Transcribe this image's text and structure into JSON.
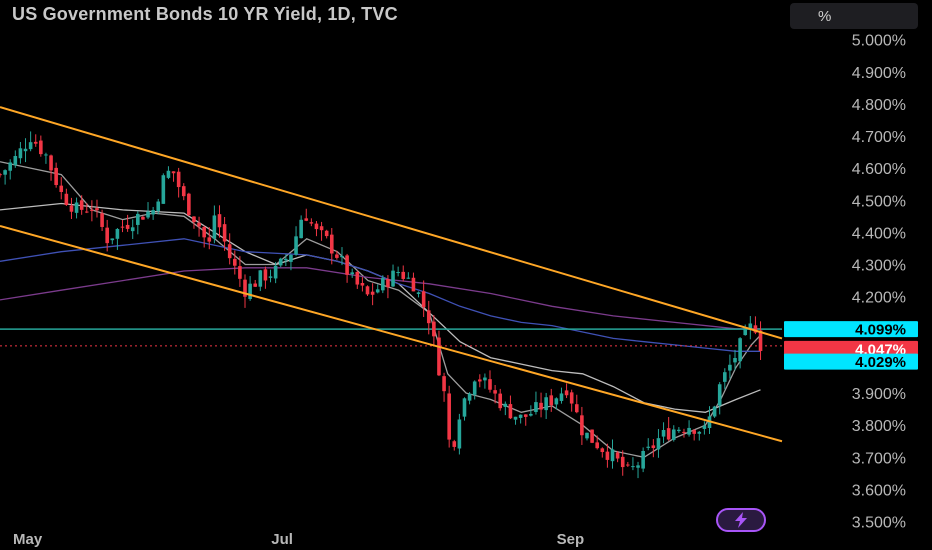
{
  "header": {
    "title": "US Government Bonds 10 YR Yield, 1D, TVC",
    "unit_button": "%"
  },
  "chart_data": {
    "type": "candlestick",
    "title": "US Government Bonds 10 YR Yield, 1D, TVC",
    "y_axis": {
      "ticks": [
        "5.000%",
        "4.900%",
        "4.800%",
        "4.700%",
        "4.600%",
        "4.500%",
        "4.400%",
        "4.300%",
        "4.200%",
        "3.900%",
        "3.800%",
        "3.700%",
        "3.600%",
        "3.500%"
      ],
      "tick_values": [
        5.0,
        4.9,
        4.8,
        4.7,
        4.6,
        4.5,
        4.4,
        4.3,
        4.2,
        3.9,
        3.8,
        3.7,
        3.6,
        3.5
      ],
      "range": [
        3.48,
        5.03
      ],
      "side": "right"
    },
    "x_axis": {
      "labels": [
        "May",
        "Jul",
        "Sep"
      ],
      "label_index": [
        0.9,
        9.2,
        18.6
      ],
      "range": [
        0,
        25.5
      ]
    },
    "price_badges": [
      {
        "label": "4.099%",
        "value": 4.099,
        "color": "#00e5ff",
        "text_color": "#000000"
      },
      {
        "label": "4.047%",
        "value": 4.047,
        "color": "#f23645",
        "text_color": "#ffffff"
      },
      {
        "label": "4.029%",
        "value": 4.029,
        "color": "#00e5ff",
        "text_color": "#000000"
      }
    ],
    "horizontal_line": {
      "value": 4.099,
      "color": "#26a69a"
    },
    "dotted_line": {
      "value": 4.047,
      "color": "#f23645"
    },
    "channel": {
      "color": "#ffa726",
      "upper": [
        [
          0,
          4.79
        ],
        [
          25.5,
          4.07
        ]
      ],
      "lower": [
        [
          0,
          4.42
        ],
        [
          25.5,
          3.75
        ]
      ]
    },
    "candle_path": [
      [
        0,
        4.58
      ],
      [
        0.5,
        4.63
      ],
      [
        1,
        4.7
      ],
      [
        1.5,
        4.64
      ],
      [
        2,
        4.52
      ],
      [
        2.5,
        4.47
      ],
      [
        3,
        4.48
      ],
      [
        3.5,
        4.38
      ],
      [
        4,
        4.42
      ],
      [
        4.5,
        4.45
      ],
      [
        5,
        4.47
      ],
      [
        5.3,
        4.56
      ],
      [
        5.6,
        4.6
      ],
      [
        6,
        4.5
      ],
      [
        6.5,
        4.42
      ],
      [
        6.8,
        4.35
      ],
      [
        7,
        4.46
      ],
      [
        7.5,
        4.32
      ],
      [
        8,
        4.22
      ],
      [
        8.5,
        4.26
      ],
      [
        9,
        4.28
      ],
      [
        9.5,
        4.34
      ],
      [
        9.9,
        4.47
      ],
      [
        10.3,
        4.4
      ],
      [
        10.6,
        4.38
      ],
      [
        11,
        4.33
      ],
      [
        11.5,
        4.25
      ],
      [
        12,
        4.2
      ],
      [
        12.5,
        4.24
      ],
      [
        13,
        4.28
      ],
      [
        13.5,
        4.24
      ],
      [
        14,
        4.13
      ],
      [
        14.5,
        3.89
      ],
      [
        14.7,
        3.7
      ],
      [
        15,
        3.85
      ],
      [
        15.5,
        3.96
      ],
      [
        16,
        3.91
      ],
      [
        16.5,
        3.85
      ],
      [
        17,
        3.82
      ],
      [
        17.5,
        3.85
      ],
      [
        18,
        3.88
      ],
      [
        18.5,
        3.92
      ],
      [
        19,
        3.78
      ],
      [
        19.5,
        3.74
      ],
      [
        20,
        3.7
      ],
      [
        20.5,
        3.65
      ],
      [
        21,
        3.7
      ],
      [
        21.5,
        3.76
      ],
      [
        22,
        3.79
      ],
      [
        22.5,
        3.8
      ],
      [
        23,
        3.78
      ],
      [
        23.5,
        3.93
      ],
      [
        24,
        4.02
      ],
      [
        24.3,
        4.08
      ],
      [
        24.6,
        4.12
      ],
      [
        24.8,
        4.05
      ]
    ],
    "series": [
      {
        "name": "",
        "color": "#9e9e9e",
        "points": [
          [
            0,
            4.62
          ],
          [
            2,
            4.58
          ],
          [
            3,
            4.47
          ],
          [
            4,
            4.44
          ],
          [
            5,
            4.46
          ],
          [
            6,
            4.45
          ],
          [
            7,
            4.38
          ],
          [
            8,
            4.3
          ],
          [
            9,
            4.3
          ],
          [
            10,
            4.38
          ],
          [
            11,
            4.34
          ],
          [
            12,
            4.25
          ],
          [
            13,
            4.22
          ],
          [
            14,
            4.15
          ],
          [
            14.6,
            3.96
          ],
          [
            15.2,
            3.9
          ],
          [
            16,
            3.88
          ],
          [
            17,
            3.84
          ],
          [
            18,
            3.86
          ],
          [
            19,
            3.8
          ],
          [
            20,
            3.72
          ],
          [
            21,
            3.7
          ],
          [
            22,
            3.76
          ],
          [
            23,
            3.8
          ],
          [
            23.5,
            3.88
          ],
          [
            24,
            3.98
          ],
          [
            24.5,
            4.05
          ],
          [
            24.8,
            4.08
          ]
        ]
      },
      {
        "name": "",
        "color": "#bdbdbd",
        "points": [
          [
            0,
            4.47
          ],
          [
            2,
            4.49
          ],
          [
            4,
            4.47
          ],
          [
            6,
            4.46
          ],
          [
            7,
            4.4
          ],
          [
            8,
            4.34
          ],
          [
            9,
            4.3
          ],
          [
            10,
            4.33
          ],
          [
            11,
            4.31
          ],
          [
            12,
            4.28
          ],
          [
            13,
            4.24
          ],
          [
            14,
            4.15
          ],
          [
            15,
            4.06
          ],
          [
            16,
            4.01
          ],
          [
            17,
            3.99
          ],
          [
            18,
            3.97
          ],
          [
            19,
            3.96
          ],
          [
            20,
            3.92
          ],
          [
            21,
            3.87
          ],
          [
            22,
            3.85
          ],
          [
            23,
            3.84
          ],
          [
            23.5,
            3.86
          ],
          [
            24,
            3.88
          ],
          [
            24.8,
            3.91
          ]
        ]
      },
      {
        "name": "",
        "color": "#3f51b5",
        "points": [
          [
            0,
            4.31
          ],
          [
            2,
            4.34
          ],
          [
            4,
            4.36
          ],
          [
            6,
            4.38
          ],
          [
            8,
            4.34
          ],
          [
            10,
            4.33
          ],
          [
            11,
            4.31
          ],
          [
            12,
            4.28
          ],
          [
            13,
            4.24
          ],
          [
            14,
            4.21
          ],
          [
            15,
            4.17
          ],
          [
            16,
            4.14
          ],
          [
            17,
            4.12
          ],
          [
            18,
            4.11
          ],
          [
            19,
            4.09
          ],
          [
            20,
            4.07
          ],
          [
            21,
            4.06
          ],
          [
            22,
            4.05
          ],
          [
            23,
            4.04
          ],
          [
            24,
            4.03
          ],
          [
            24.8,
            4.03
          ]
        ]
      },
      {
        "name": "",
        "color": "#7b3b8c",
        "points": [
          [
            0,
            4.19
          ],
          [
            2,
            4.22
          ],
          [
            4,
            4.25
          ],
          [
            6,
            4.28
          ],
          [
            8,
            4.29
          ],
          [
            10,
            4.29
          ],
          [
            12,
            4.26
          ],
          [
            14,
            4.24
          ],
          [
            16,
            4.21
          ],
          [
            18,
            4.17
          ],
          [
            20,
            4.14
          ],
          [
            22,
            4.12
          ],
          [
            24,
            4.1
          ],
          [
            24.8,
            4.1
          ]
        ]
      }
    ],
    "grid": false,
    "legend": "none"
  },
  "colors": {
    "up": "#26a69a",
    "down": "#f23645",
    "background": "#000000",
    "logo": "#a855f7"
  },
  "icons": {
    "logo": "bolt-logo-icon"
  }
}
